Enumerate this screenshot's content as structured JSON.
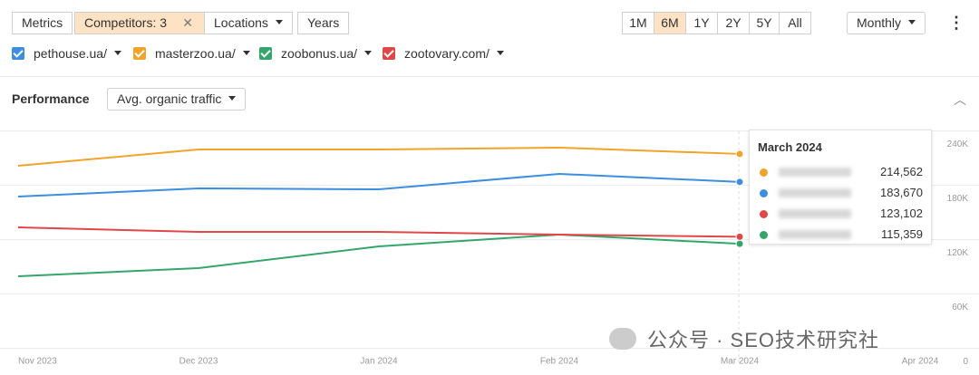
{
  "toolbar": {
    "metrics": "Metrics",
    "competitors": "Competitors: 3",
    "locations": "Locations",
    "years": "Years",
    "ranges": [
      "1M",
      "6M",
      "1Y",
      "2Y",
      "5Y",
      "All"
    ],
    "active_range": "6M",
    "granularity": "Monthly"
  },
  "performance": {
    "title": "Performance",
    "metric": "Avg. organic traffic"
  },
  "tooltip": {
    "title": "March 2024",
    "values": [
      "214,562",
      "183,670",
      "123,102",
      "115,359"
    ]
  },
  "watermark": "公众号 · SEO技术研究社",
  "chart_data": {
    "type": "line",
    "categories": [
      "Nov 2023",
      "Dec 2023",
      "Jan 2024",
      "Feb 2024",
      "Mar 2024",
      "Apr 2024"
    ],
    "series": [
      {
        "name": "pethouse.ua/",
        "color": "#3b8ee0",
        "values": [
          167500,
          176500,
          175500,
          192500,
          183670,
          null
        ]
      },
      {
        "name": "masterzoo.ua/",
        "color": "#f2a32a",
        "values": [
          201500,
          219500,
          219500,
          221500,
          214562,
          null
        ]
      },
      {
        "name": "zoobonus.ua/",
        "color": "#35a66b",
        "values": [
          79500,
          88500,
          112500,
          125500,
          115359,
          null
        ]
      },
      {
        "name": "zootovary.com/",
        "color": "#e04848",
        "values": [
          133500,
          128500,
          128500,
          125500,
          123102,
          null
        ]
      }
    ],
    "ylim": [
      0,
      240000
    ],
    "yticks": [
      {
        "value": 0,
        "label": "0"
      },
      {
        "value": 60000,
        "label": "60K"
      },
      {
        "value": 120000,
        "label": "120K"
      },
      {
        "value": 180000,
        "label": "180K"
      },
      {
        "value": 240000,
        "label": "240K"
      }
    ],
    "grid": true
  }
}
